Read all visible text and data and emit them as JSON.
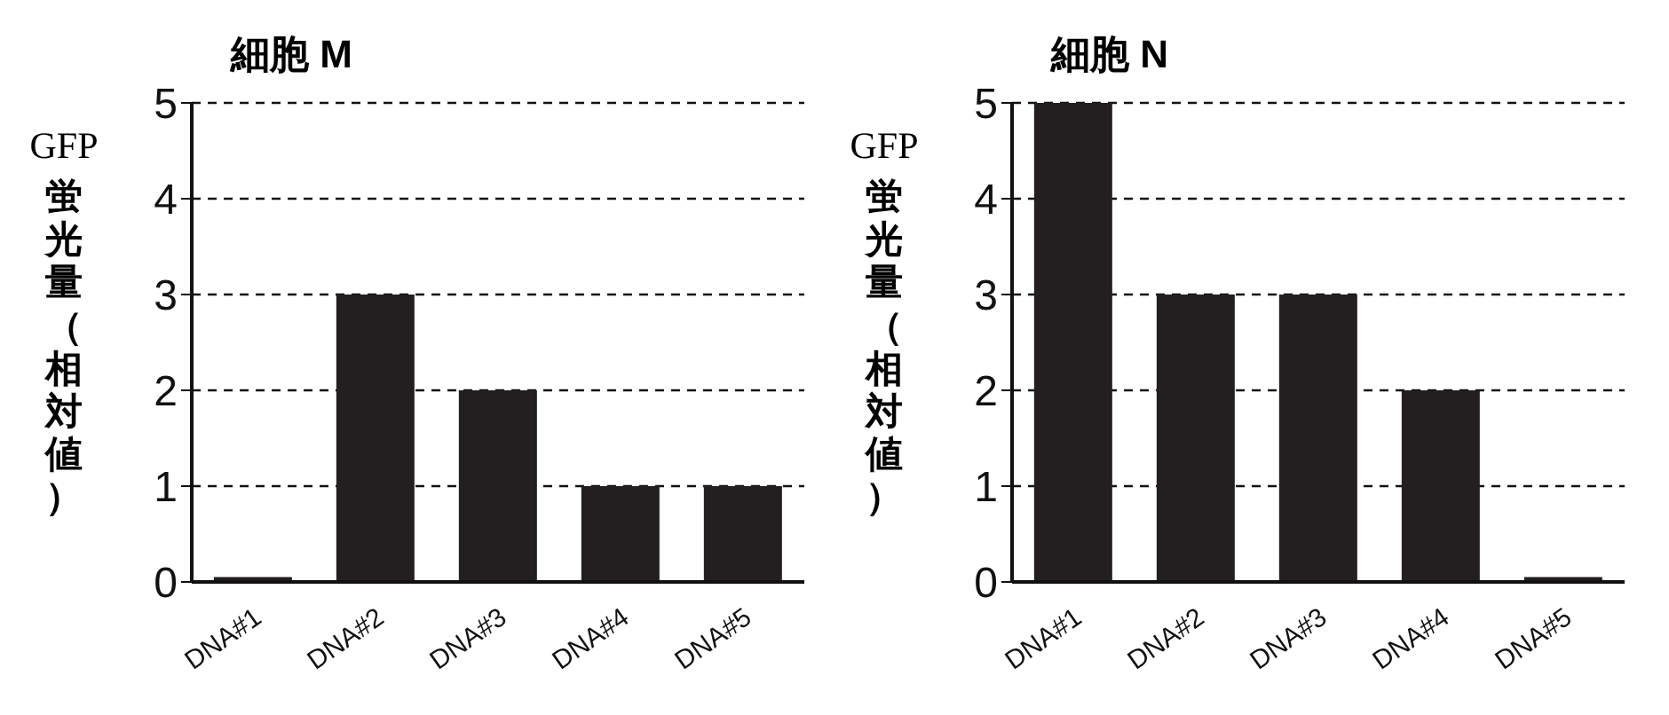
{
  "chart_data": [
    {
      "type": "bar",
      "title": "細胞 M",
      "ylabel": "GFP蛍光量（相対値）",
      "categories": [
        "DNA#1",
        "DNA#2",
        "DNA#3",
        "DNA#4",
        "DNA#5"
      ],
      "values": [
        0.05,
        3,
        2,
        1,
        1
      ],
      "color": "#231f20",
      "ylim": [
        0,
        5
      ],
      "yticks": [
        0,
        1,
        2,
        3,
        4,
        5
      ],
      "grid": "y",
      "legend": false
    },
    {
      "type": "bar",
      "title": "細胞 N",
      "ylabel": "GFP蛍光量（相対値）",
      "categories": [
        "DNA#1",
        "DNA#2",
        "DNA#3",
        "DNA#4",
        "DNA#5"
      ],
      "values": [
        5,
        3,
        3,
        2,
        0.05
      ],
      "color": "#231f20",
      "ylim": [
        0,
        5
      ],
      "yticks": [
        0,
        1,
        2,
        3,
        4,
        5
      ],
      "grid": "y",
      "legend": false
    }
  ]
}
